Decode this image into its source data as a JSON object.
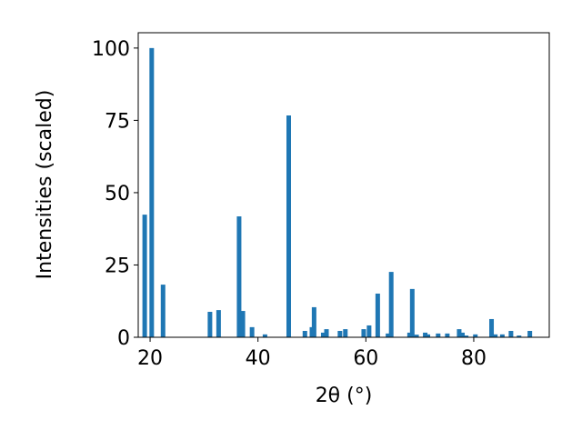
{
  "chart_data": {
    "type": "bar",
    "x_label": "2θ (°)",
    "y_label": "Intensities (scaled)",
    "x": [
      19.0,
      20.3,
      22.4,
      31.1,
      32.7,
      36.5,
      37.2,
      38.9,
      41.3,
      45.7,
      48.7,
      50.0,
      50.4,
      52.1,
      52.7,
      55.2,
      56.2,
      59.6,
      60.6,
      62.2,
      64.1,
      64.7,
      68.1,
      68.6,
      69.4,
      71.0,
      71.5,
      73.4,
      75.1,
      77.3,
      77.9,
      78.6,
      80.3,
      83.3,
      84.0,
      85.3,
      86.9,
      88.4,
      90.4
    ],
    "values": [
      42.4,
      100,
      18.2,
      8.8,
      9.4,
      41.8,
      9.1,
      3.5,
      1.0,
      76.7,
      2.2,
      3.5,
      10.4,
      1.6,
      2.8,
      2.2,
      2.8,
      2.8,
      4.1,
      15.1,
      1.3,
      22.6,
      1.6,
      16.7,
      0.9,
      1.6,
      1.0,
      1.3,
      1.3,
      2.8,
      1.6,
      0.6,
      1.0,
      6.3,
      1.0,
      1.0,
      2.2,
      0.6,
      2.2
    ],
    "color": "#1f77b4",
    "xlim": [
      17.8,
      94.0
    ],
    "xticks": [
      20,
      40,
      60,
      80
    ],
    "ylim": [
      0,
      105.3
    ],
    "yticks": [
      0,
      25,
      50,
      75,
      100
    ],
    "grid": false
  }
}
